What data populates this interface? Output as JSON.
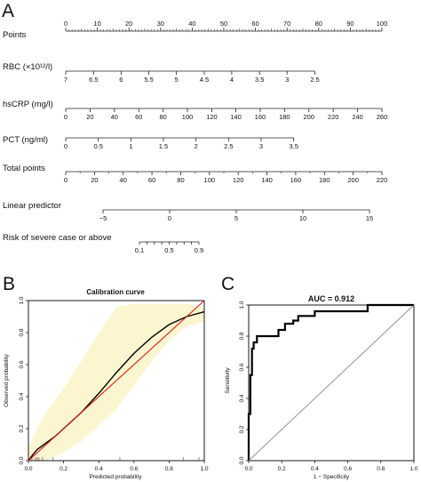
{
  "panel_letters": {
    "a": "A",
    "b": "B",
    "c": "C"
  },
  "chart_data": [
    {
      "type": "nomogram",
      "rows": [
        {
          "label": "Points",
          "ticks": [
            0,
            10,
            20,
            30,
            40,
            50,
            60,
            70,
            80,
            90,
            100
          ],
          "tick_labels": [
            "0",
            "10",
            "20",
            "30",
            "40",
            "50",
            "60",
            "70",
            "80",
            "90",
            "100"
          ],
          "minor_per_major": 10
        },
        {
          "label": "RBC (×10¹²/l)",
          "ticks": [
            7,
            6.5,
            6,
            5.5,
            5,
            4.5,
            4,
            3.5,
            3,
            2.5
          ],
          "tick_labels": [
            "7",
            "6.5",
            "6",
            "5.5",
            "5",
            "4.5",
            "4",
            "3.5",
            "3",
            "2.5"
          ],
          "points": [
            0,
            8.8,
            17.5,
            26.3,
            35,
            43.8,
            52.5,
            61.3,
            70,
            78.8
          ]
        },
        {
          "label": "hsCRP (mg/l)",
          "ticks": [
            0,
            20,
            40,
            60,
            80,
            100,
            120,
            140,
            160,
            180,
            200,
            220,
            240,
            260
          ],
          "tick_labels": [
            "0",
            "20",
            "40",
            "60",
            "80",
            "100",
            "120",
            "140",
            "160",
            "180",
            "200",
            "220",
            "240",
            "260"
          ],
          "points": [
            0,
            7.7,
            15.4,
            23.1,
            30.8,
            38.5,
            46.2,
            53.8,
            61.5,
            69.2,
            76.9,
            84.6,
            92.3,
            100
          ]
        },
        {
          "label": "PCT (ng/ml)",
          "ticks": [
            0,
            0.5,
            1,
            1.5,
            2,
            2.5,
            3,
            3.5
          ],
          "tick_labels": [
            "0",
            "0.5",
            "1",
            "1.5",
            "2",
            "2.5",
            "3",
            "3.5"
          ],
          "points": [
            0,
            10.3,
            20.6,
            30.9,
            41.2,
            51.5,
            61.8,
            72.1
          ]
        },
        {
          "label": "Total points",
          "ticks": [
            0,
            20,
            40,
            60,
            80,
            100,
            120,
            140,
            160,
            180,
            200,
            220
          ],
          "tick_labels": [
            "0",
            "20",
            "40",
            "60",
            "80",
            "100",
            "120",
            "140",
            "160",
            "180",
            "200",
            "220"
          ],
          "minor_per_major": 2
        },
        {
          "label": "Linear predictor",
          "ticks": [
            -5,
            0,
            5,
            10,
            15
          ],
          "tick_labels": [
            "−5",
            "0",
            "5",
            "10",
            "15"
          ],
          "range": [
            -5,
            15
          ]
        },
        {
          "label": "Risk of severe case or above",
          "ticks": [
            0.1,
            0.2,
            0.3,
            0.4,
            0.5,
            0.6,
            0.7,
            0.8,
            0.9
          ],
          "tick_labels": [
            "0.1",
            "0.5",
            "0.9"
          ],
          "labeled_ticks": [
            0.1,
            0.5,
            0.9
          ]
        }
      ]
    },
    {
      "type": "line",
      "title": "Calibration curve",
      "xlabel": "Predicted probability",
      "ylabel": "Observed probability",
      "xlim": [
        0,
        1
      ],
      "ylim": [
        0,
        1
      ],
      "x_ticks": [
        0.0,
        0.2,
        0.4,
        0.6,
        0.8,
        1.0
      ],
      "x_tick_labels": [
        "0.0",
        "0.2",
        "0.4",
        "0.6",
        "0.8",
        "1.0"
      ],
      "y_ticks": [
        0.0,
        0.2,
        0.4,
        0.6,
        0.8,
        1.0
      ],
      "y_tick_labels": [
        "0.0",
        "0.2",
        "0.4",
        "0.6",
        "0.8",
        "1.0"
      ],
      "confidence_band": {
        "x": [
          0.0,
          0.05,
          0.1,
          0.2,
          0.3,
          0.4,
          0.5,
          0.6,
          0.7,
          0.8,
          0.9,
          1.0
        ],
        "lower": [
          0.0,
          0.0,
          0.0,
          0.05,
          0.12,
          0.22,
          0.32,
          0.47,
          0.62,
          0.75,
          0.84,
          0.87
        ],
        "upper": [
          0.08,
          0.2,
          0.3,
          0.45,
          0.62,
          0.8,
          0.96,
          0.98,
          0.98,
          0.98,
          0.98,
          0.96
        ]
      },
      "rug_x": [
        0.02,
        0.04,
        0.05,
        0.06,
        0.08,
        0.14,
        0.52,
        0.88,
        0.97
      ],
      "series": [
        {
          "role": "calibration",
          "color": "#000000",
          "x": [
            0.0,
            0.02,
            0.05,
            0.1,
            0.15,
            0.2,
            0.3,
            0.4,
            0.5,
            0.6,
            0.7,
            0.8,
            0.9,
            1.0
          ],
          "y": [
            0.0,
            0.03,
            0.07,
            0.11,
            0.15,
            0.2,
            0.3,
            0.42,
            0.55,
            0.67,
            0.77,
            0.85,
            0.9,
            0.93
          ]
        },
        {
          "role": "reference",
          "color": "#d81b1b",
          "x": [
            0.0,
            1.0
          ],
          "y": [
            0.0,
            1.0
          ]
        }
      ],
      "band_color": "#fbf6cf"
    },
    {
      "type": "line",
      "title": "AUC = 0.912",
      "xlabel": "1 − Specificity",
      "ylabel": "Sensitivity",
      "xlim": [
        0,
        1
      ],
      "ylim": [
        0,
        1
      ],
      "x_ticks": [
        0.0,
        0.2,
        0.4,
        0.6,
        0.8,
        1.0
      ],
      "x_tick_labels": [
        "0.0",
        "0.2",
        "0.4",
        "0.6",
        "0.8",
        "1.0"
      ],
      "y_ticks": [
        0.0,
        0.2,
        0.4,
        0.6,
        0.8,
        1.0
      ],
      "y_tick_labels": [
        "0.0",
        "0.2",
        "0.4",
        "0.6",
        "0.8",
        "1.0"
      ],
      "series": [
        {
          "role": "roc",
          "color": "#000000",
          "x": [
            0,
            0,
            0.01,
            0.01,
            0.02,
            0.02,
            0.03,
            0.03,
            0.05,
            0.05,
            0.18,
            0.18,
            0.22,
            0.22,
            0.27,
            0.27,
            0.3,
            0.3,
            0.4,
            0.4,
            0.72,
            0.72,
            1.0
          ],
          "y": [
            0,
            0.3,
            0.3,
            0.55,
            0.55,
            0.72,
            0.72,
            0.76,
            0.76,
            0.8,
            0.8,
            0.84,
            0.84,
            0.88,
            0.88,
            0.9,
            0.9,
            0.93,
            0.93,
            0.96,
            0.96,
            1.0,
            1.0
          ]
        },
        {
          "role": "chance",
          "color": "#888888",
          "x": [
            0,
            1
          ],
          "y": [
            0,
            1
          ]
        }
      ]
    }
  ]
}
